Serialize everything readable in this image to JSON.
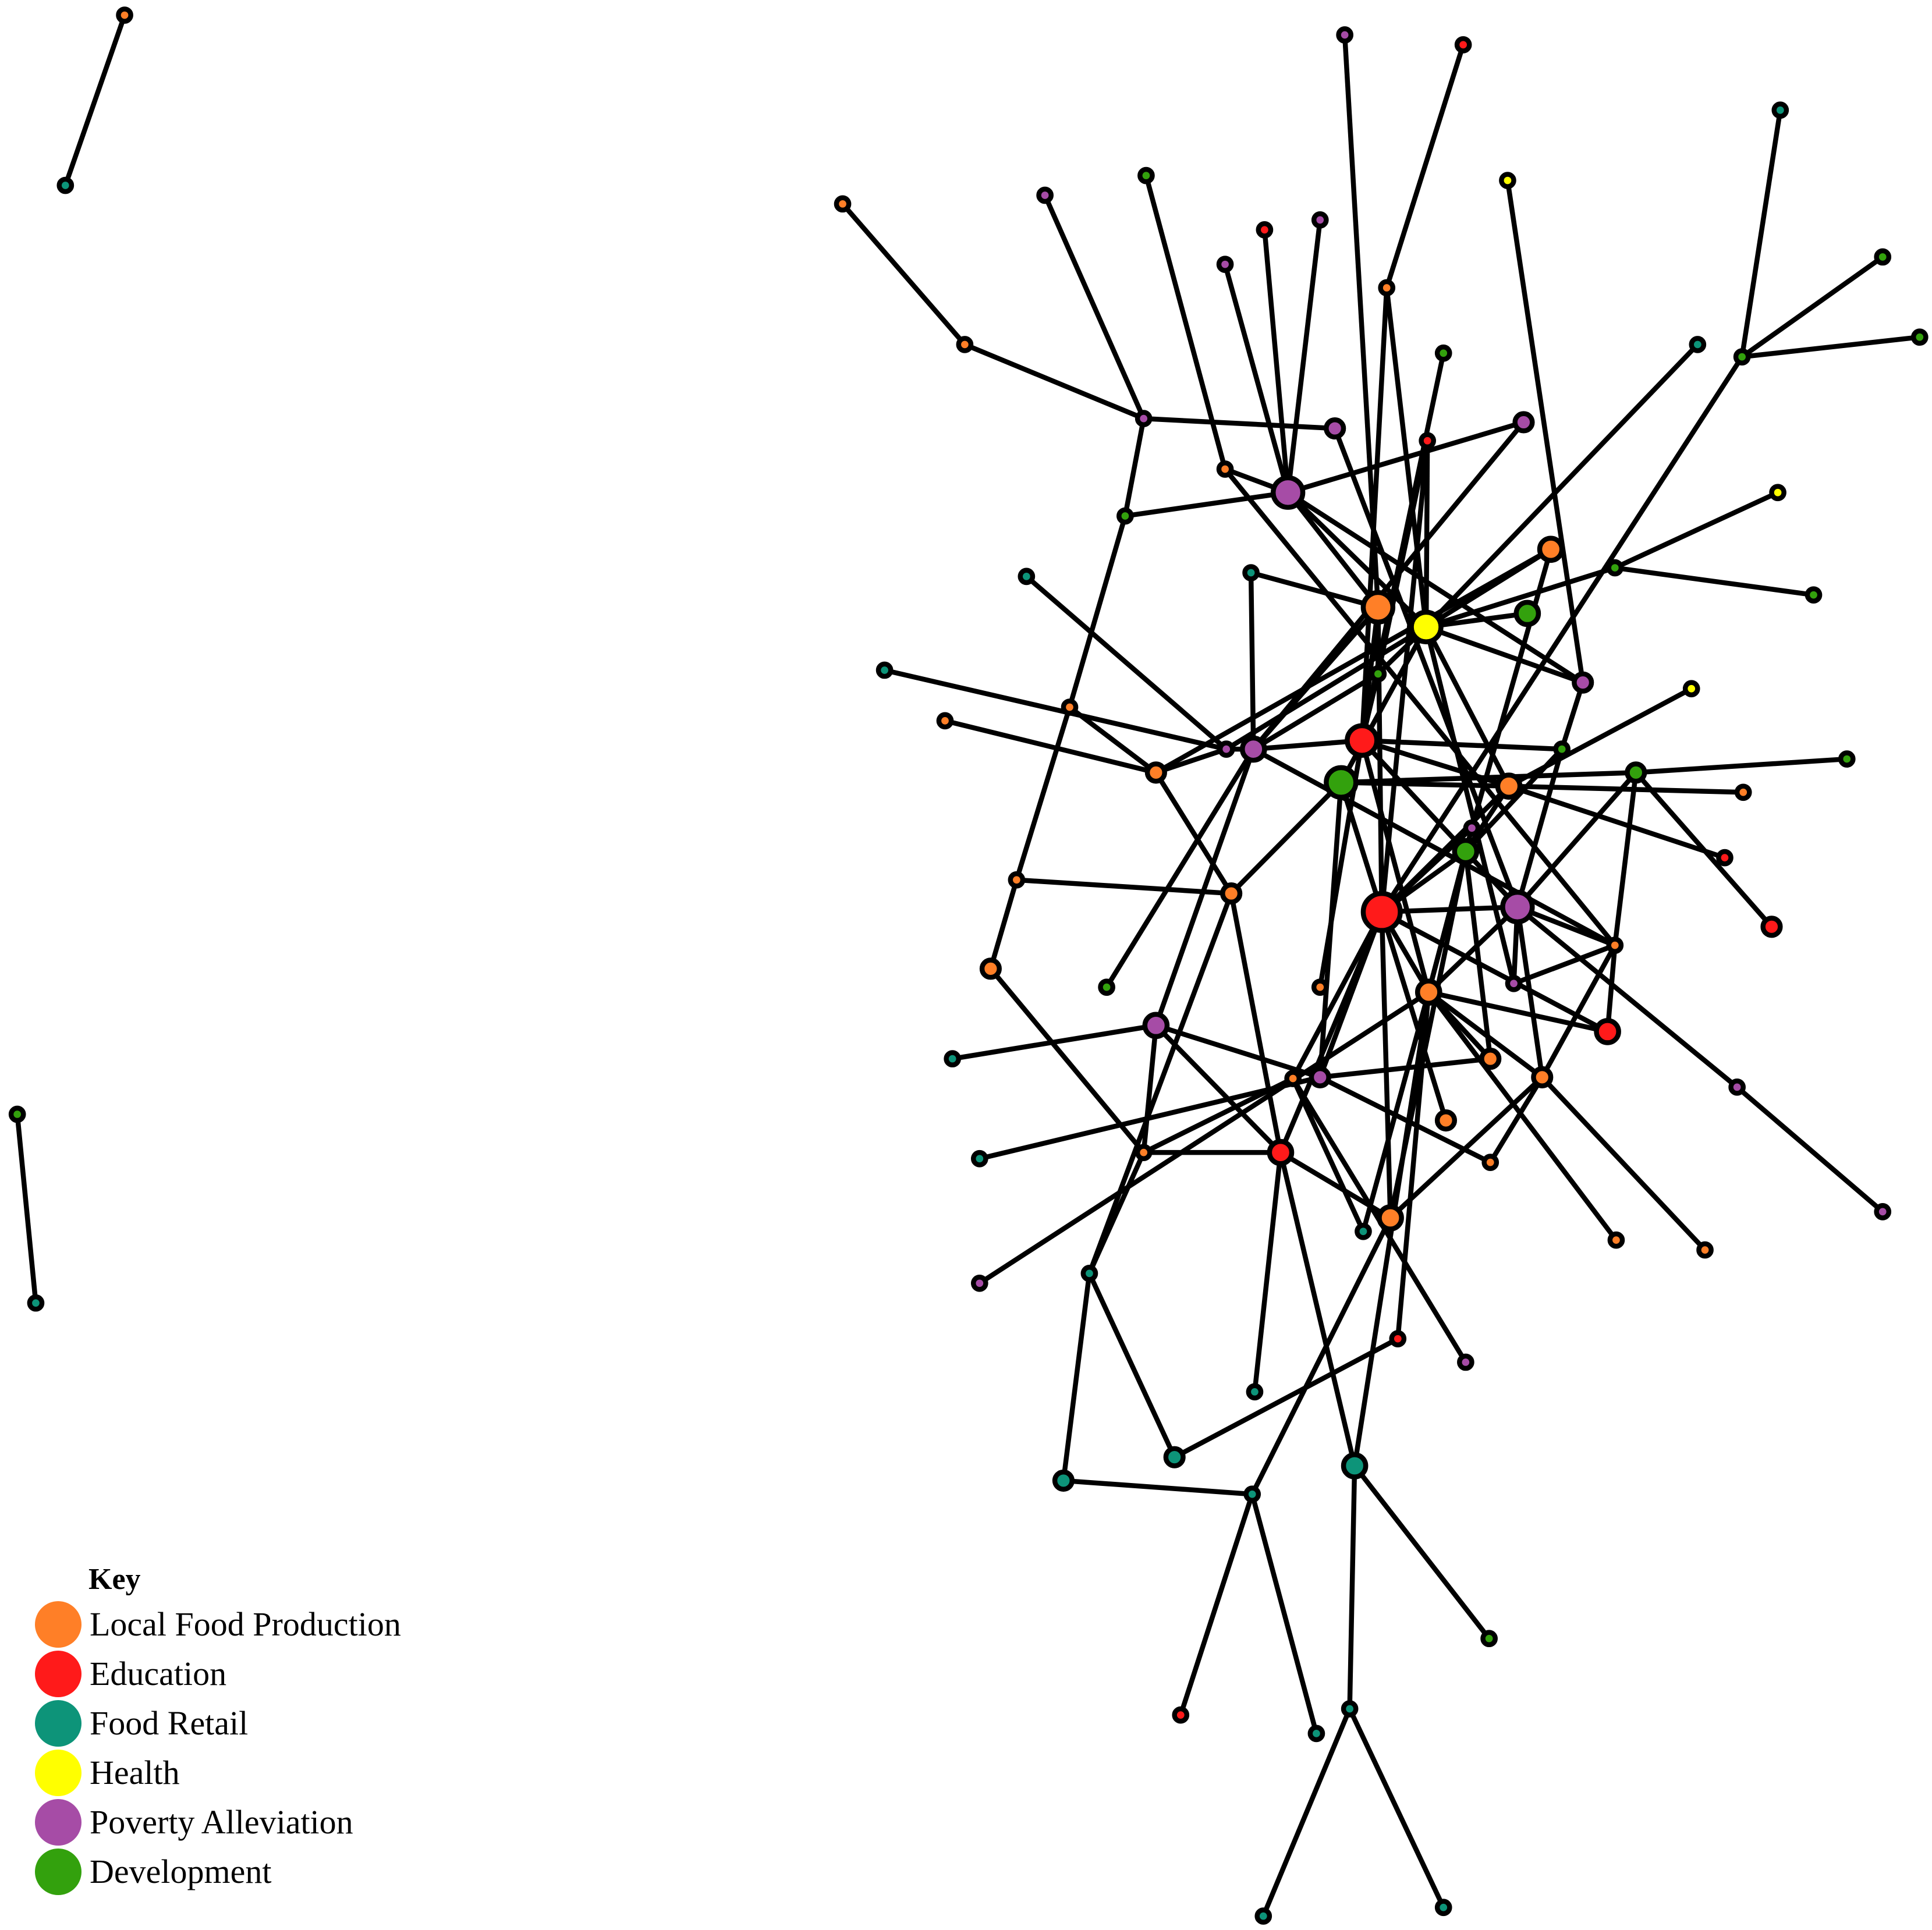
{
  "legend": {
    "title": "Key",
    "items": [
      {
        "key": "local",
        "label": "Local Food Production",
        "color": "#ff7f27"
      },
      {
        "key": "edu",
        "label": "Education",
        "color": "#ff1a1a"
      },
      {
        "key": "retail",
        "label": "Food Retail",
        "color": "#0d9479"
      },
      {
        "key": "health",
        "label": "Health",
        "color": "#ffff00"
      },
      {
        "key": "poverty",
        "label": "Poverty Alleviation",
        "color": "#a64ca6"
      },
      {
        "key": "dev",
        "label": "Development",
        "color": "#33a10d"
      }
    ]
  }
}
